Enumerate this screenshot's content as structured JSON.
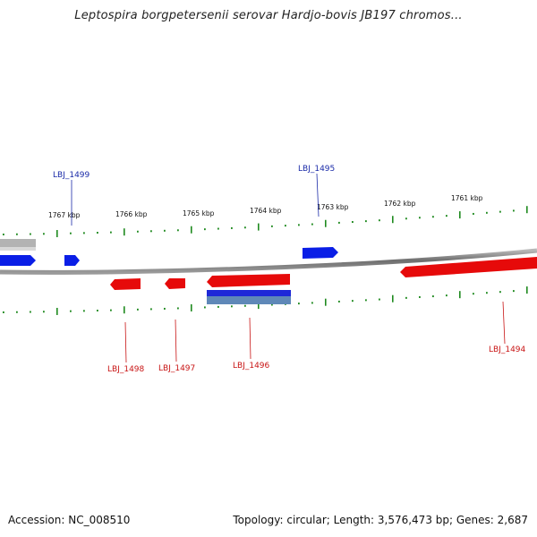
{
  "title": "Leptospira borgpetersenii serovar Hardjo-bovis JB197 chromos...",
  "accession": "Accession: NC_008510",
  "summary": "Topology: circular; Length: 3,576,473 bp; Genes: 2,687",
  "colors": {
    "forward_gene": "#0a1ee6",
    "reverse_gene": "#e60a0a",
    "pseudo_gene": "#b8b8b8",
    "backbone": "#7a7a7a",
    "ticks": "#1f8a1f",
    "forward_label": "#1a2aa8",
    "reverse_label": "#c81414"
  },
  "scale": {
    "unit": "kbp",
    "tick_labels": [
      "1767 kbp",
      "1766 kbp",
      "1765 kbp",
      "1764 kbp",
      "1763 kbp",
      "1762 kbp",
      "1761 kbp"
    ]
  },
  "gene_labels": {
    "forward": [
      "LBJ_1499",
      "LBJ_1495"
    ],
    "reverse": [
      "LBJ_1498",
      "LBJ_1497",
      "LBJ_1496",
      "LBJ_1494"
    ]
  },
  "chart_data": {
    "type": "genome-map",
    "strands": [
      "forward",
      "reverse"
    ],
    "direction": "coordinates decrease left to right",
    "labeled_genes": [
      {
        "name": "LBJ_1499",
        "strand": "forward"
      },
      {
        "name": "LBJ_1495",
        "strand": "forward"
      },
      {
        "name": "LBJ_1498",
        "strand": "reverse"
      },
      {
        "name": "LBJ_1497",
        "strand": "reverse"
      },
      {
        "name": "LBJ_1496",
        "strand": "reverse"
      },
      {
        "name": "LBJ_1494",
        "strand": "reverse"
      }
    ]
  }
}
